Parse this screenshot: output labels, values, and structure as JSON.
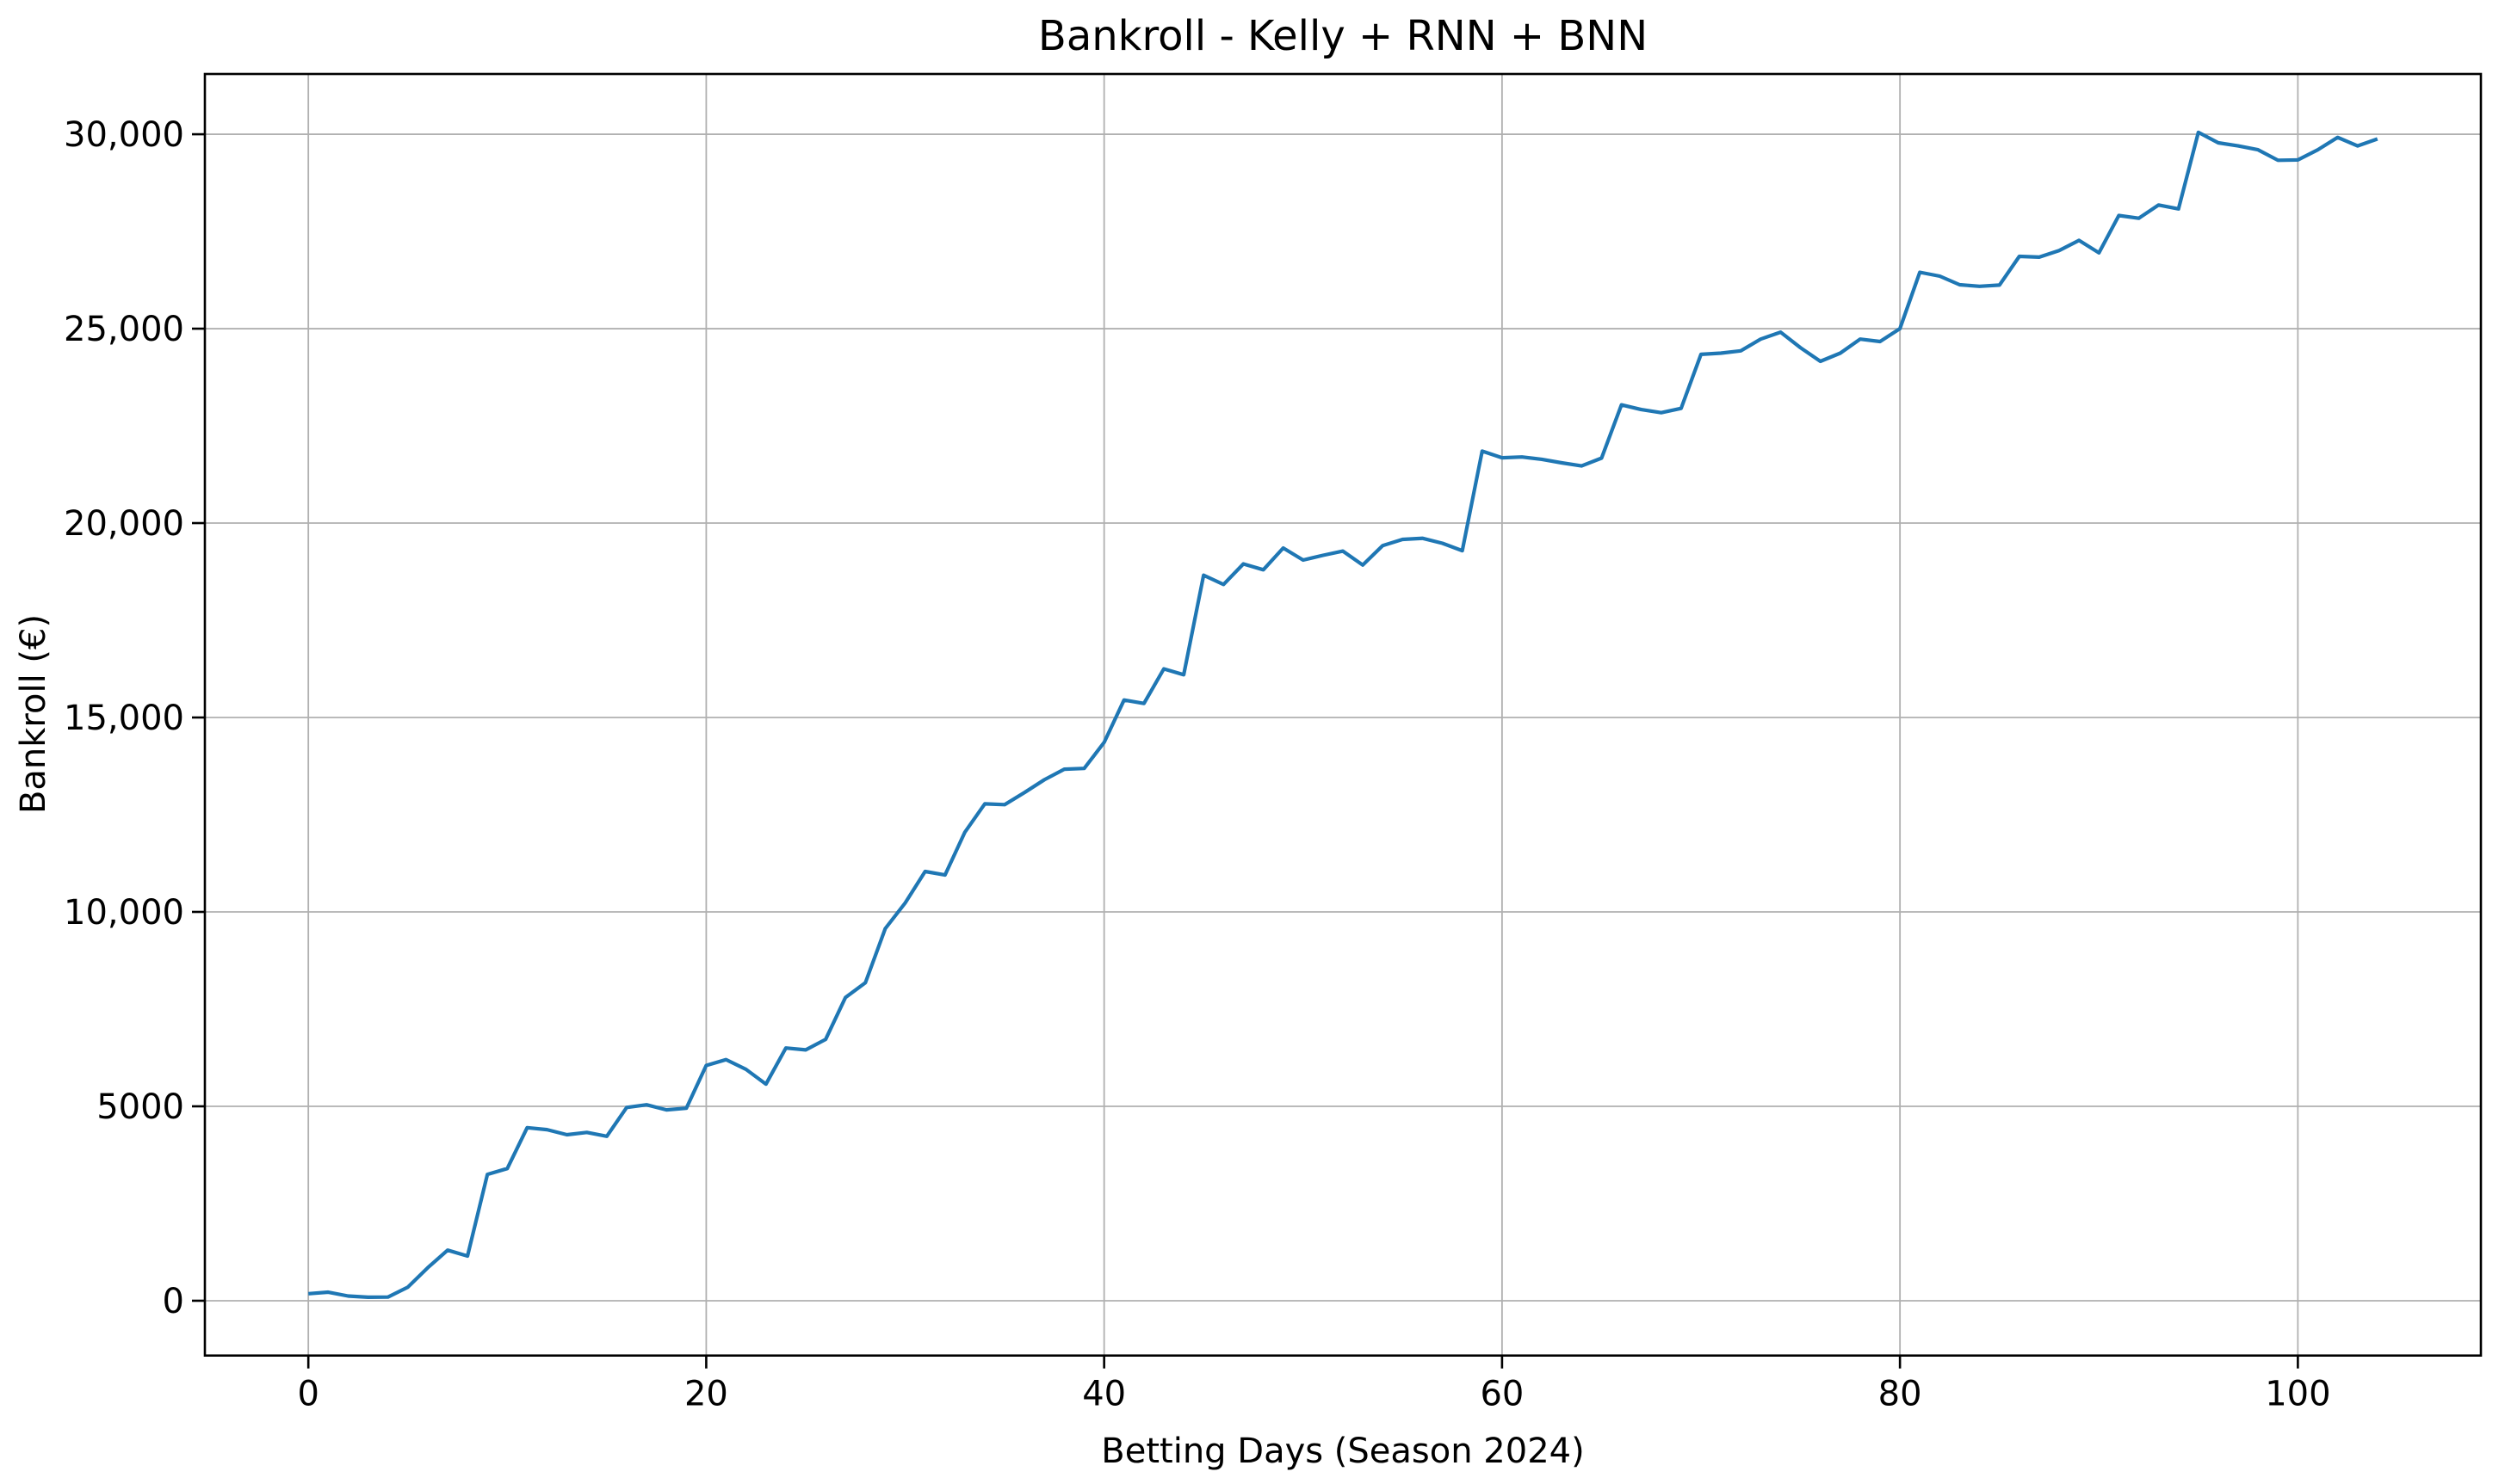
{
  "figure": {
    "title": "Bankroll - Kelly + RNN + BNN",
    "xlabel": "Betting Days (Season 2024)",
    "ylabel": "Bankroll (€)"
  },
  "chart_data": {
    "type": "line",
    "title": "Bankroll - Kelly + RNN + BNN",
    "xlabel": "Betting Days (Season 2024)",
    "ylabel": "Bankroll (€)",
    "series_name": "Bankroll",
    "line_color": "#1f77b4",
    "grid": true,
    "grid_color": "#b0b0b0",
    "spine_color": "#000000",
    "background_color": "#ffffff",
    "legend": false,
    "xlim": [
      -5.2,
      109.2
    ],
    "ylim": [
      -1410,
      31550
    ],
    "xticks": {
      "values": [
        0,
        20,
        40,
        60,
        80,
        100
      ],
      "labels": [
        "0",
        "20",
        "40",
        "60",
        "80",
        "100"
      ]
    },
    "yticks": {
      "values": [
        0,
        5000,
        10000,
        15000,
        20000,
        25000,
        30000
      ],
      "labels": [
        "0",
        "5000",
        "10,000",
        "15,000",
        "20,000",
        "25,000",
        "30,000"
      ]
    },
    "x": [
      0,
      1,
      2,
      3,
      4,
      5,
      6,
      7,
      8,
      9,
      10,
      11,
      12,
      13,
      14,
      15,
      16,
      17,
      18,
      19,
      20,
      21,
      22,
      23,
      24,
      25,
      26,
      27,
      28,
      29,
      30,
      31,
      32,
      33,
      34,
      35,
      36,
      37,
      38,
      39,
      40,
      41,
      42,
      43,
      44,
      45,
      46,
      47,
      48,
      49,
      50,
      51,
      52,
      53,
      54,
      55,
      56,
      57,
      58,
      59,
      60,
      61,
      62,
      63,
      64,
      65,
      66,
      67,
      68,
      69,
      70,
      71,
      72,
      73,
      74,
      75,
      76,
      77,
      78,
      79,
      80,
      81,
      82,
      83,
      84,
      85,
      86,
      87,
      88,
      89,
      90,
      91,
      92,
      93,
      94,
      95,
      96,
      97,
      98,
      99,
      100,
      101,
      102,
      103,
      104
    ],
    "values": [
      180,
      220,
      120,
      90,
      95,
      350,
      850,
      1300,
      1150,
      3250,
      3400,
      4450,
      4400,
      4270,
      4330,
      4230,
      4970,
      5040,
      4910,
      4950,
      6050,
      6200,
      5950,
      5570,
      6500,
      6450,
      6720,
      7800,
      8180,
      9570,
      10230,
      11040,
      10950,
      12050,
      12780,
      12760,
      13070,
      13400,
      13670,
      13690,
      14360,
      15450,
      15360,
      16250,
      16100,
      18660,
      18420,
      18950,
      18800,
      19360,
      19050,
      19170,
      19280,
      18920,
      19420,
      19580,
      19610,
      19480,
      19290,
      21850,
      21680,
      21700,
      21640,
      21550,
      21470,
      21670,
      23040,
      22920,
      22840,
      22950,
      24340,
      24370,
      24430,
      24730,
      24910,
      24510,
      24160,
      24370,
      24730,
      24670,
      25000,
      26450,
      26350,
      26130,
      26090,
      26120,
      26860,
      26840,
      27010,
      27270,
      26950,
      27910,
      27840,
      28180,
      28080,
      30050,
      29780,
      29700,
      29600,
      29330,
      29340,
      29600,
      29920,
      29700,
      29880
    ]
  }
}
